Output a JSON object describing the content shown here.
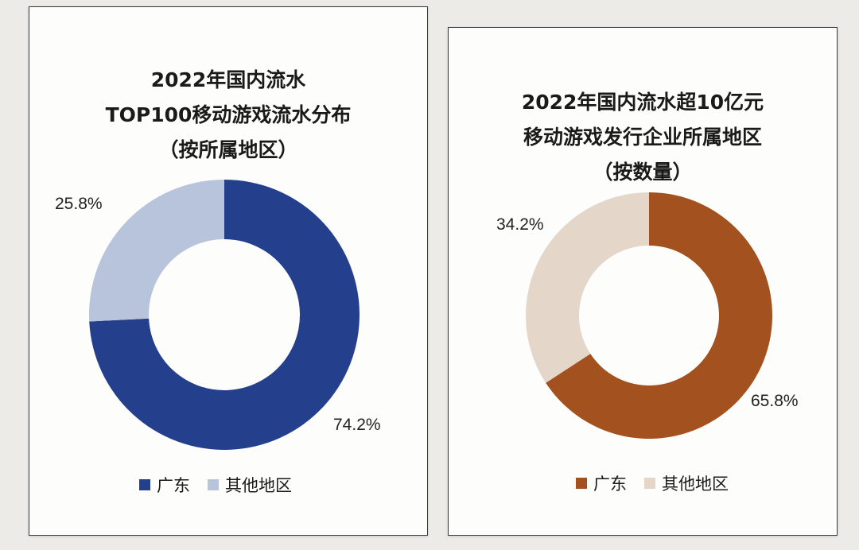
{
  "chart_data": [
    {
      "type": "pie",
      "donut": true,
      "title_lines": [
        "2022年国内流水",
        "TOP100移动游戏流水分布",
        "（按所属地区）"
      ],
      "categories": [
        "广东",
        "其他地区"
      ],
      "values": [
        74.2,
        25.8
      ],
      "labels": [
        "74.2%",
        "25.8%"
      ],
      "colors": [
        "#243f8c",
        "#b8c4dc"
      ],
      "legend": "bottom"
    },
    {
      "type": "pie",
      "donut": true,
      "title_lines": [
        "2022年国内流水超10亿元",
        "移动游戏发行企业所属地区",
        "（按数量）"
      ],
      "categories": [
        "广东",
        "其他地区"
      ],
      "values": [
        65.8,
        34.2
      ],
      "labels": [
        "65.8%",
        "34.2%"
      ],
      "colors": [
        "#a3511f",
        "#e4d7c9"
      ],
      "legend": "bottom"
    }
  ]
}
